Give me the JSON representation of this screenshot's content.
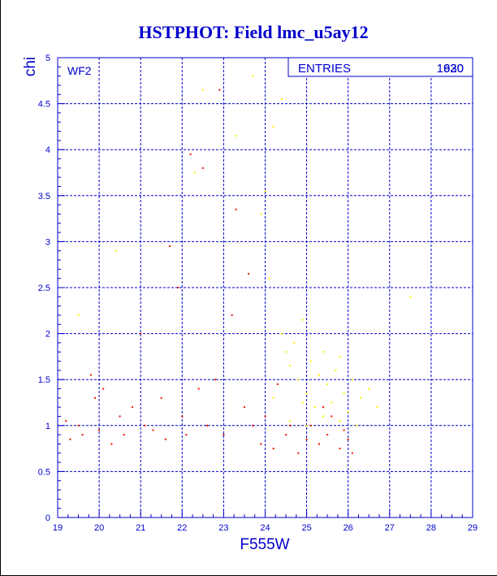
{
  "chart_data": {
    "type": "scatter",
    "title": "HSTPHOT: Field lmc_u5ay12",
    "xlabel": "F555W",
    "ylabel": "chi",
    "xlim": [
      19,
      29
    ],
    "ylim": [
      0,
      5
    ],
    "xticks": [
      "19",
      "20",
      "21",
      "22",
      "23",
      "24",
      "25",
      "26",
      "27",
      "28",
      "29"
    ],
    "yticks": [
      "0",
      "0.5",
      "1",
      "1.5",
      "2",
      "2.5",
      "3",
      "3.5",
      "4",
      "4.5",
      "5"
    ],
    "grid": true,
    "panel_label": "WF2",
    "stats": {
      "label": "ENTRIES",
      "values": [
        "1920",
        "630"
      ]
    },
    "colors": {
      "title": "#0000cc",
      "axes": "#0000cc",
      "grid": "#0000cc",
      "red_points": "#ee1100",
      "yellow_points": "#ffee00"
    },
    "series": [
      {
        "color": "red",
        "count": 1920,
        "points": [
          [
            19.2,
            1.05
          ],
          [
            19.3,
            0.85
          ],
          [
            19.5,
            1.0
          ],
          [
            19.6,
            0.9
          ],
          [
            19.8,
            1.55
          ],
          [
            19.9,
            1.3
          ],
          [
            20.0,
            0.95
          ],
          [
            20.1,
            1.4
          ],
          [
            20.3,
            0.8
          ],
          [
            20.5,
            1.1
          ],
          [
            20.6,
            0.9
          ],
          [
            20.8,
            1.2
          ],
          [
            21.0,
            2.0
          ],
          [
            21.1,
            1.0
          ],
          [
            21.3,
            0.95
          ],
          [
            21.5,
            1.3
          ],
          [
            21.6,
            0.85
          ],
          [
            21.7,
            2.95
          ],
          [
            21.9,
            2.5
          ],
          [
            22.0,
            1.1
          ],
          [
            22.1,
            0.9
          ],
          [
            22.2,
            3.95
          ],
          [
            22.4,
            1.4
          ],
          [
            22.5,
            3.8
          ],
          [
            22.6,
            1.0
          ],
          [
            22.8,
            1.5
          ],
          [
            22.9,
            4.65
          ],
          [
            23.0,
            0.9
          ],
          [
            23.2,
            2.2
          ],
          [
            23.3,
            3.35
          ],
          [
            23.5,
            1.2
          ],
          [
            23.6,
            2.65
          ],
          [
            23.7,
            1.0
          ],
          [
            23.9,
            0.8
          ],
          [
            24.0,
            1.1
          ],
          [
            24.2,
            0.75
          ],
          [
            24.3,
            1.45
          ],
          [
            24.5,
            0.9
          ],
          [
            24.6,
            1.0
          ],
          [
            24.8,
            0.7
          ],
          [
            25.0,
            0.85
          ],
          [
            25.1,
            1.0
          ],
          [
            25.3,
            0.8
          ],
          [
            25.5,
            0.9
          ],
          [
            25.6,
            1.1
          ],
          [
            25.8,
            0.75
          ],
          [
            25.9,
            0.95
          ],
          [
            26.0,
            0.85
          ],
          [
            26.1,
            0.7
          ],
          [
            25.4,
            1.2
          ]
        ]
      },
      {
        "color": "yellow",
        "count": 630,
        "points": [
          [
            19.5,
            2.2
          ],
          [
            20.4,
            2.9
          ],
          [
            22.3,
            3.75
          ],
          [
            22.5,
            4.65
          ],
          [
            23.3,
            4.15
          ],
          [
            23.7,
            4.8
          ],
          [
            23.9,
            3.3
          ],
          [
            24.0,
            3.55
          ],
          [
            24.2,
            4.25
          ],
          [
            24.4,
            4.55
          ],
          [
            24.1,
            2.6
          ],
          [
            24.4,
            2.0
          ],
          [
            24.5,
            1.8
          ],
          [
            24.6,
            1.65
          ],
          [
            24.7,
            1.9
          ],
          [
            24.8,
            1.5
          ],
          [
            24.9,
            2.15
          ],
          [
            25.0,
            1.35
          ],
          [
            25.1,
            1.7
          ],
          [
            25.2,
            1.2
          ],
          [
            25.3,
            1.55
          ],
          [
            25.4,
            1.1
          ],
          [
            25.5,
            1.45
          ],
          [
            25.6,
            1.25
          ],
          [
            25.7,
            1.6
          ],
          [
            25.8,
            1.05
          ],
          [
            25.9,
            1.35
          ],
          [
            26.0,
            1.15
          ],
          [
            26.1,
            1.5
          ],
          [
            26.3,
            1.3
          ],
          [
            26.5,
            1.4
          ],
          [
            26.7,
            1.2
          ],
          [
            27.5,
            2.4
          ],
          [
            24.2,
            1.3
          ],
          [
            24.6,
            1.05
          ],
          [
            25.0,
            1.0
          ],
          [
            25.4,
            1.8
          ],
          [
            25.8,
            1.75
          ],
          [
            26.2,
            1.0
          ],
          [
            24.9,
            1.25
          ]
        ]
      }
    ]
  }
}
